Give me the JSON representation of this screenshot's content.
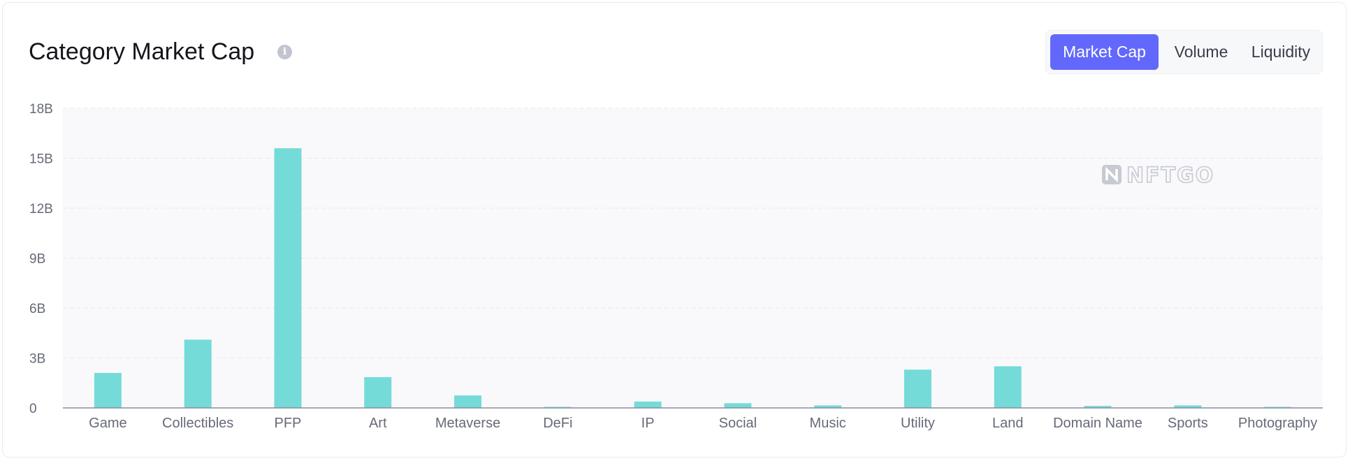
{
  "header": {
    "title": "Category Market Cap",
    "info_icon": "info-icon"
  },
  "toggles": [
    {
      "label": "Market Cap",
      "active": true
    },
    {
      "label": "Volume",
      "active": false
    },
    {
      "label": "Liquidity",
      "active": false
    }
  ],
  "watermark": "NFTGO",
  "colors": {
    "bar": "#74dbd9",
    "accent": "#6268fb",
    "plot_bg": "#f9f9fb",
    "grid": "#e7e9ee",
    "axis": "#8a8e9c"
  },
  "chart_data": {
    "type": "bar",
    "title": "Category Market Cap",
    "xlabel": "",
    "ylabel": "",
    "ylim": [
      0,
      18
    ],
    "y_unit": "B",
    "y_ticks": [
      {
        "value": 0,
        "label": "0"
      },
      {
        "value": 3,
        "label": "3B"
      },
      {
        "value": 6,
        "label": "6B"
      },
      {
        "value": 9,
        "label": "9B"
      },
      {
        "value": 12,
        "label": "12B"
      },
      {
        "value": 15,
        "label": "15B"
      },
      {
        "value": 18,
        "label": "18B"
      }
    ],
    "grid": true,
    "legend": "none",
    "categories": [
      "Game",
      "Collectibles",
      "PFP",
      "Art",
      "Metaverse",
      "DeFi",
      "IP",
      "Social",
      "Music",
      "Utility",
      "Land",
      "Domain Name",
      "Sports",
      "Photography"
    ],
    "values": [
      2.1,
      4.1,
      15.6,
      1.85,
      0.75,
      0.05,
      0.38,
      0.28,
      0.15,
      2.3,
      2.5,
      0.12,
      0.15,
      0.06
    ]
  }
}
